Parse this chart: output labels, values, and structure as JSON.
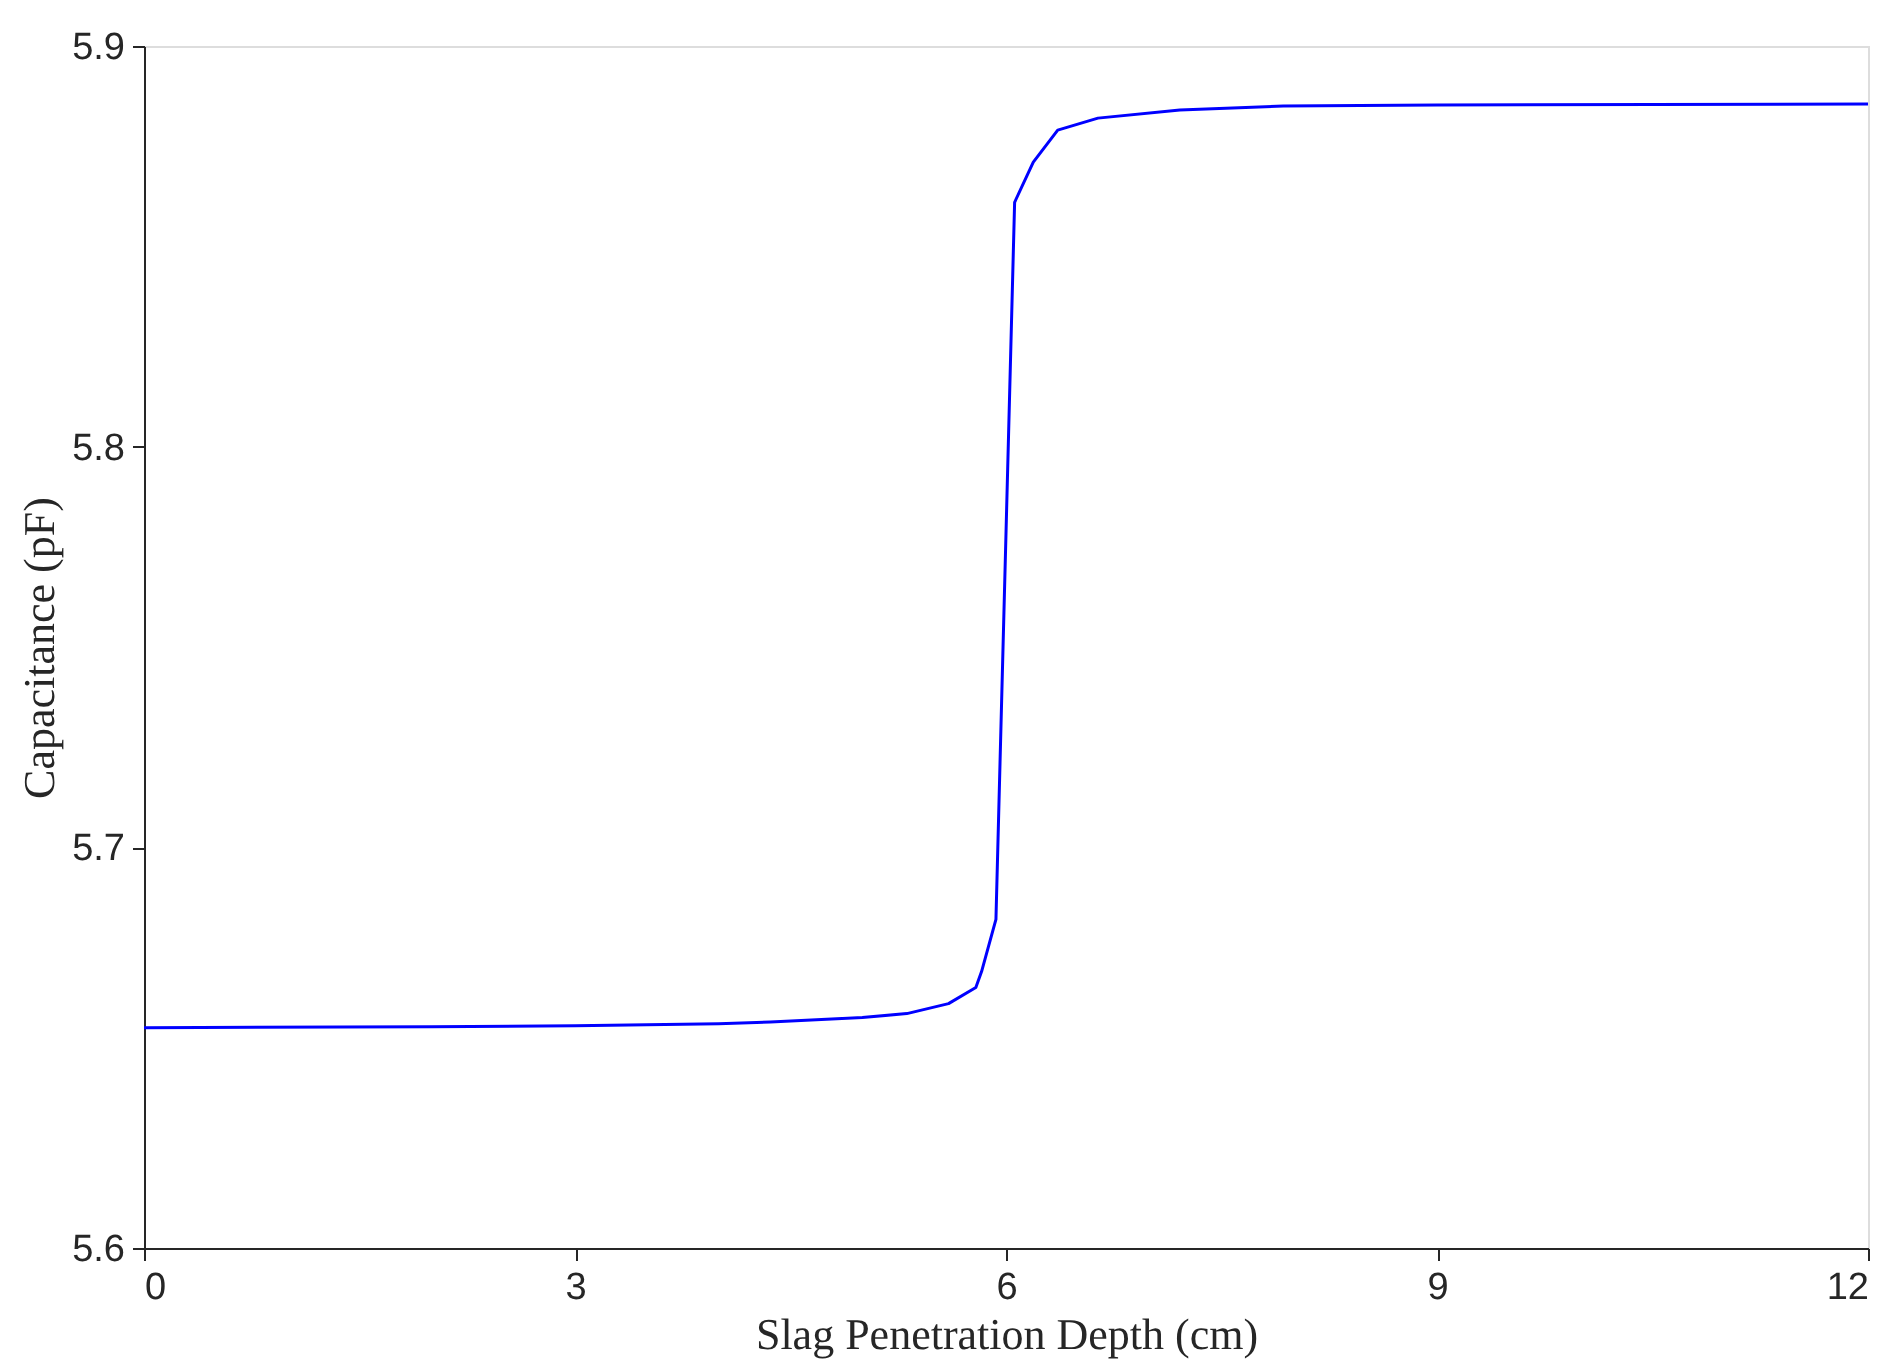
{
  "chart_data": {
    "type": "line",
    "xlabel": "Slag Penetration Depth (cm)",
    "ylabel": "Capacitance (pF)",
    "x": [
      0,
      2,
      3,
      4,
      4.36,
      5.0,
      5.31,
      5.6,
      5.79,
      5.83,
      5.93,
      6.06,
      6.19,
      6.36,
      6.64,
      7.21,
      7.93,
      9,
      12
    ],
    "series": [
      {
        "color": "#0000ff",
        "values": [
          5.655,
          5.6552,
          5.6555,
          5.656,
          5.6564,
          5.6575,
          5.6585,
          5.661,
          5.665,
          5.669,
          5.682,
          5.861,
          5.871,
          5.879,
          5.882,
          5.884,
          5.885,
          5.8853,
          5.8855
        ]
      }
    ],
    "xlim": [
      0,
      12
    ],
    "xticks": [
      0,
      3,
      6,
      9,
      12
    ],
    "ylim": [
      5.6,
      5.9
    ],
    "yticks": [
      5.6,
      5.7,
      5.8,
      5.9
    ]
  }
}
